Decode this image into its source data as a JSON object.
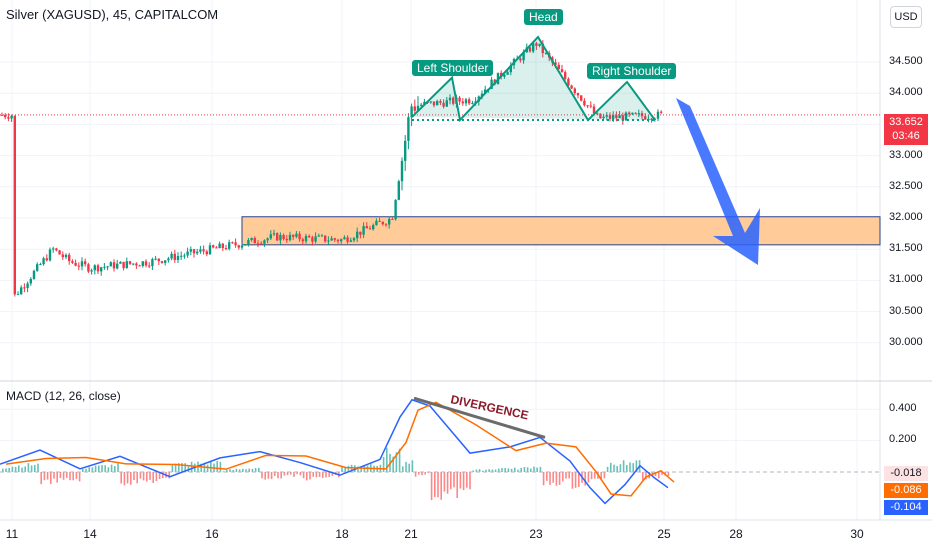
{
  "header": {
    "title": "Silver (XAGUSD), 45, CAPITALCOM",
    "currency_button": "USD"
  },
  "macd_panel": {
    "title": "MACD (12, 26, close)",
    "value_hist": "-0.018",
    "value_signal": "-0.086",
    "value_macd": "-0.104",
    "annotation": "DIVERGENCE"
  },
  "price_axis": {
    "ticks": [
      "34.500",
      "34.000",
      "33.500",
      "33.000",
      "32.500",
      "32.000",
      "31.500",
      "31.000",
      "30.500",
      "30.000"
    ],
    "current_price": "33.652",
    "countdown": "03:46"
  },
  "macd_axis": {
    "ticks": [
      "0.400",
      "0.200"
    ]
  },
  "time_axis": {
    "labels": [
      "11",
      "14",
      "16",
      "18",
      "21",
      "23",
      "25",
      "28",
      "30"
    ]
  },
  "pattern": {
    "left_shoulder": "Left Shoulder",
    "head": "Head",
    "right_shoulder": "Right Shoulder"
  },
  "colors": {
    "up": "#089981",
    "down": "#f23645",
    "zone_fill": "#ffcc99",
    "zone_border": "#2a3f8f",
    "pattern": "#089981",
    "arrow": "#2962ff",
    "macd_line": "#2962ff",
    "signal_line": "#ff6d00",
    "divergence_line": "#6b6b6b",
    "divergence_text": "#8b1a2b"
  },
  "chart_data": {
    "type": "candlestick",
    "ylim": [
      29.95,
      35.1
    ],
    "close_path": [
      {
        "x": "11",
        "y": 30.7
      },
      {
        "x": "12",
        "y": 31.5
      },
      {
        "x": "13",
        "y": 31.3
      },
      {
        "x": "14",
        "y": 31.2
      },
      {
        "x": "15",
        "y": 31.3
      },
      {
        "x": "16",
        "y": 31.5
      },
      {
        "x": "17",
        "y": 31.7
      },
      {
        "x": "18",
        "y": 31.65
      },
      {
        "x": "20",
        "y": 32.0
      },
      {
        "x": "21",
        "y": 33.8
      },
      {
        "x": "22",
        "y": 33.9
      },
      {
        "x": "23",
        "y": 34.8
      },
      {
        "x": "24",
        "y": 33.6
      },
      {
        "x": "25",
        "y": 33.652
      }
    ],
    "support_zone": {
      "low": 31.57,
      "high": 32.02
    },
    "neckline": 33.57,
    "head_and_shoulders": {
      "left_shoulder": 34.25,
      "head": 34.9,
      "right_shoulder": 34.18
    },
    "macd": {
      "ylim": [
        -0.22,
        0.52
      ],
      "divergence": {
        "start": 0.47,
        "end": 0.22
      }
    }
  }
}
